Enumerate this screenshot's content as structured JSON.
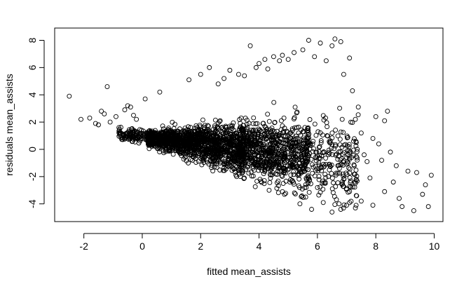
{
  "chart_data": {
    "type": "scatter",
    "title": "",
    "xlabel": "fitted mean_assists",
    "ylabel": "residuals mean_assists",
    "xlim": [
      -3.0,
      10.3
    ],
    "ylim": [
      -5.3,
      8.9
    ],
    "x_ticks": [
      -2,
      0,
      2,
      4,
      6,
      8,
      10
    ],
    "y_ticks": [
      -4,
      -2,
      0,
      2,
      4,
      6,
      8
    ],
    "x_tick_labels": [
      "-2",
      "0",
      "2",
      "4",
      "6",
      "8",
      "10"
    ],
    "y_tick_labels": [
      "-4",
      "-2",
      "0",
      "2",
      "4",
      "6",
      "8"
    ],
    "grid": false,
    "marker": "open-circle",
    "marker_color": "#000000",
    "series": [
      {
        "points": [
          [
            -2.5,
            3.9
          ],
          [
            -2.1,
            2.2
          ],
          [
            -1.8,
            2.3
          ],
          [
            -1.6,
            1.9
          ],
          [
            -1.5,
            1.8
          ],
          [
            -1.4,
            2.8
          ],
          [
            -1.3,
            2.6
          ],
          [
            -1.2,
            4.6
          ],
          [
            -1.1,
            2.0
          ],
          [
            -0.9,
            2.4
          ],
          [
            -0.8,
            1.6
          ],
          [
            -0.6,
            2.9
          ],
          [
            -0.5,
            3.2
          ],
          [
            -0.4,
            3.1
          ],
          [
            -0.3,
            2.5
          ],
          [
            -0.2,
            2.2
          ],
          [
            0.1,
            3.7
          ],
          [
            0.6,
            4.2
          ],
          [
            1.6,
            5.1
          ],
          [
            2.0,
            5.5
          ],
          [
            2.3,
            6.0
          ],
          [
            2.6,
            4.8
          ],
          [
            2.8,
            5.2
          ],
          [
            3.0,
            5.8
          ],
          [
            3.3,
            5.5
          ],
          [
            3.5,
            5.4
          ],
          [
            3.7,
            7.6
          ],
          [
            3.9,
            6.0
          ],
          [
            4.0,
            6.3
          ],
          [
            4.2,
            6.6
          ],
          [
            4.3,
            5.9
          ],
          [
            4.5,
            6.8
          ],
          [
            4.7,
            6.5
          ],
          [
            4.8,
            6.9
          ],
          [
            5.0,
            6.6
          ],
          [
            5.2,
            7.1
          ],
          [
            5.5,
            7.3
          ],
          [
            5.7,
            8.0
          ],
          [
            5.9,
            6.8
          ],
          [
            6.1,
            7.8
          ],
          [
            6.3,
            6.5
          ],
          [
            6.5,
            7.6
          ],
          [
            6.6,
            8.1
          ],
          [
            6.8,
            7.9
          ],
          [
            7.1,
            6.7
          ],
          [
            6.9,
            5.5
          ],
          [
            7.2,
            4.3
          ],
          [
            7.3,
            2.2
          ],
          [
            7.4,
            3.1
          ],
          [
            7.5,
            1.2
          ],
          [
            7.6,
            -0.4
          ],
          [
            7.7,
            -0.9
          ],
          [
            7.8,
            -2.1
          ],
          [
            7.9,
            0.8
          ],
          [
            8.0,
            2.4
          ],
          [
            8.1,
            0.4
          ],
          [
            8.2,
            -0.8
          ],
          [
            8.3,
            2.1
          ],
          [
            8.4,
            2.8
          ],
          [
            8.5,
            -0.2
          ],
          [
            8.6,
            -2.4
          ],
          [
            8.7,
            -1.2
          ],
          [
            8.8,
            -3.6
          ],
          [
            8.9,
            -4.2
          ],
          [
            9.1,
            -1.6
          ],
          [
            9.3,
            -4.5
          ],
          [
            9.4,
            -1.7
          ],
          [
            9.6,
            -3.3
          ],
          [
            9.7,
            -2.6
          ],
          [
            9.8,
            -4.2
          ],
          [
            9.9,
            -1.9
          ],
          [
            7.0,
            -4.1
          ],
          [
            7.3,
            -4.3
          ],
          [
            7.5,
            -3.8
          ],
          [
            7.9,
            -4.1
          ],
          [
            8.3,
            -3.1
          ],
          [
            6.2,
            -3.9
          ],
          [
            6.5,
            -4.6
          ],
          [
            5.8,
            -4.4
          ],
          [
            5.4,
            -4.0
          ],
          [
            6.8,
            -4.4
          ],
          [
            7.1,
            -3.1
          ],
          [
            6.0,
            -2.8
          ],
          [
            5.6,
            -3.5
          ]
        ]
      }
    ]
  }
}
